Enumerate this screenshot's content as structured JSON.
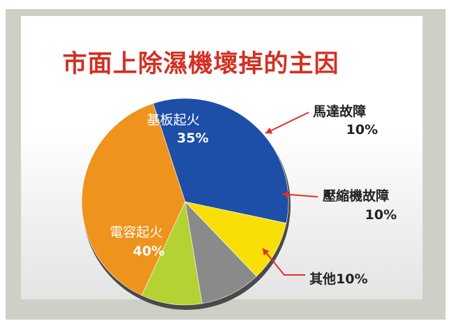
{
  "chart_data": {
    "type": "pie",
    "title": "市面上除濕機壞掉的主因",
    "slices": [
      {
        "label": "基板起火",
        "value_label": "35%",
        "value": 35,
        "color": "#1d4ea8"
      },
      {
        "label": "馬達故障",
        "value_label": "10%",
        "value": 10,
        "color": "#f8df08"
      },
      {
        "label": "壓縮機故障",
        "value_label": "10%",
        "value": 10,
        "color": "#8a8a8a"
      },
      {
        "label": "其他",
        "value_label": "10%",
        "value": 10,
        "color": "#b4d234"
      },
      {
        "label": "電容起火",
        "value_label": "40%",
        "value": 40,
        "color": "#ee931c"
      }
    ]
  }
}
